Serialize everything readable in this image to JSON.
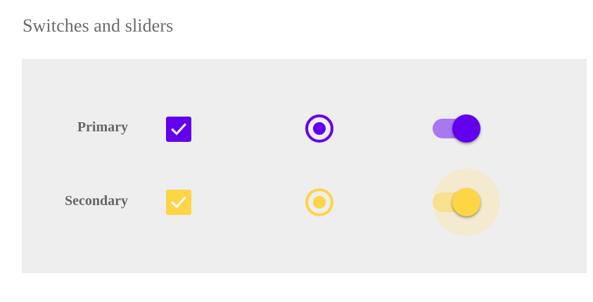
{
  "page": {
    "title": "Switches and sliders"
  },
  "colors": {
    "primary": "#6200ee",
    "primary_track": "#a679f0",
    "secondary": "#fdd545",
    "secondary_track": "#f7e08e",
    "secondary_halo": "#f3ead0",
    "label_text": "#666666",
    "panel_background": "#eeeeee"
  },
  "rows": [
    {
      "label": "Primary",
      "checkbox": {
        "checked": true,
        "icon": "check-icon"
      },
      "radio": {
        "selected": true
      },
      "switch": {
        "on": true,
        "focused": false
      }
    },
    {
      "label": "Secondary",
      "checkbox": {
        "checked": true,
        "icon": "check-icon"
      },
      "radio": {
        "selected": true
      },
      "switch": {
        "on": true,
        "focused": true
      }
    }
  ]
}
